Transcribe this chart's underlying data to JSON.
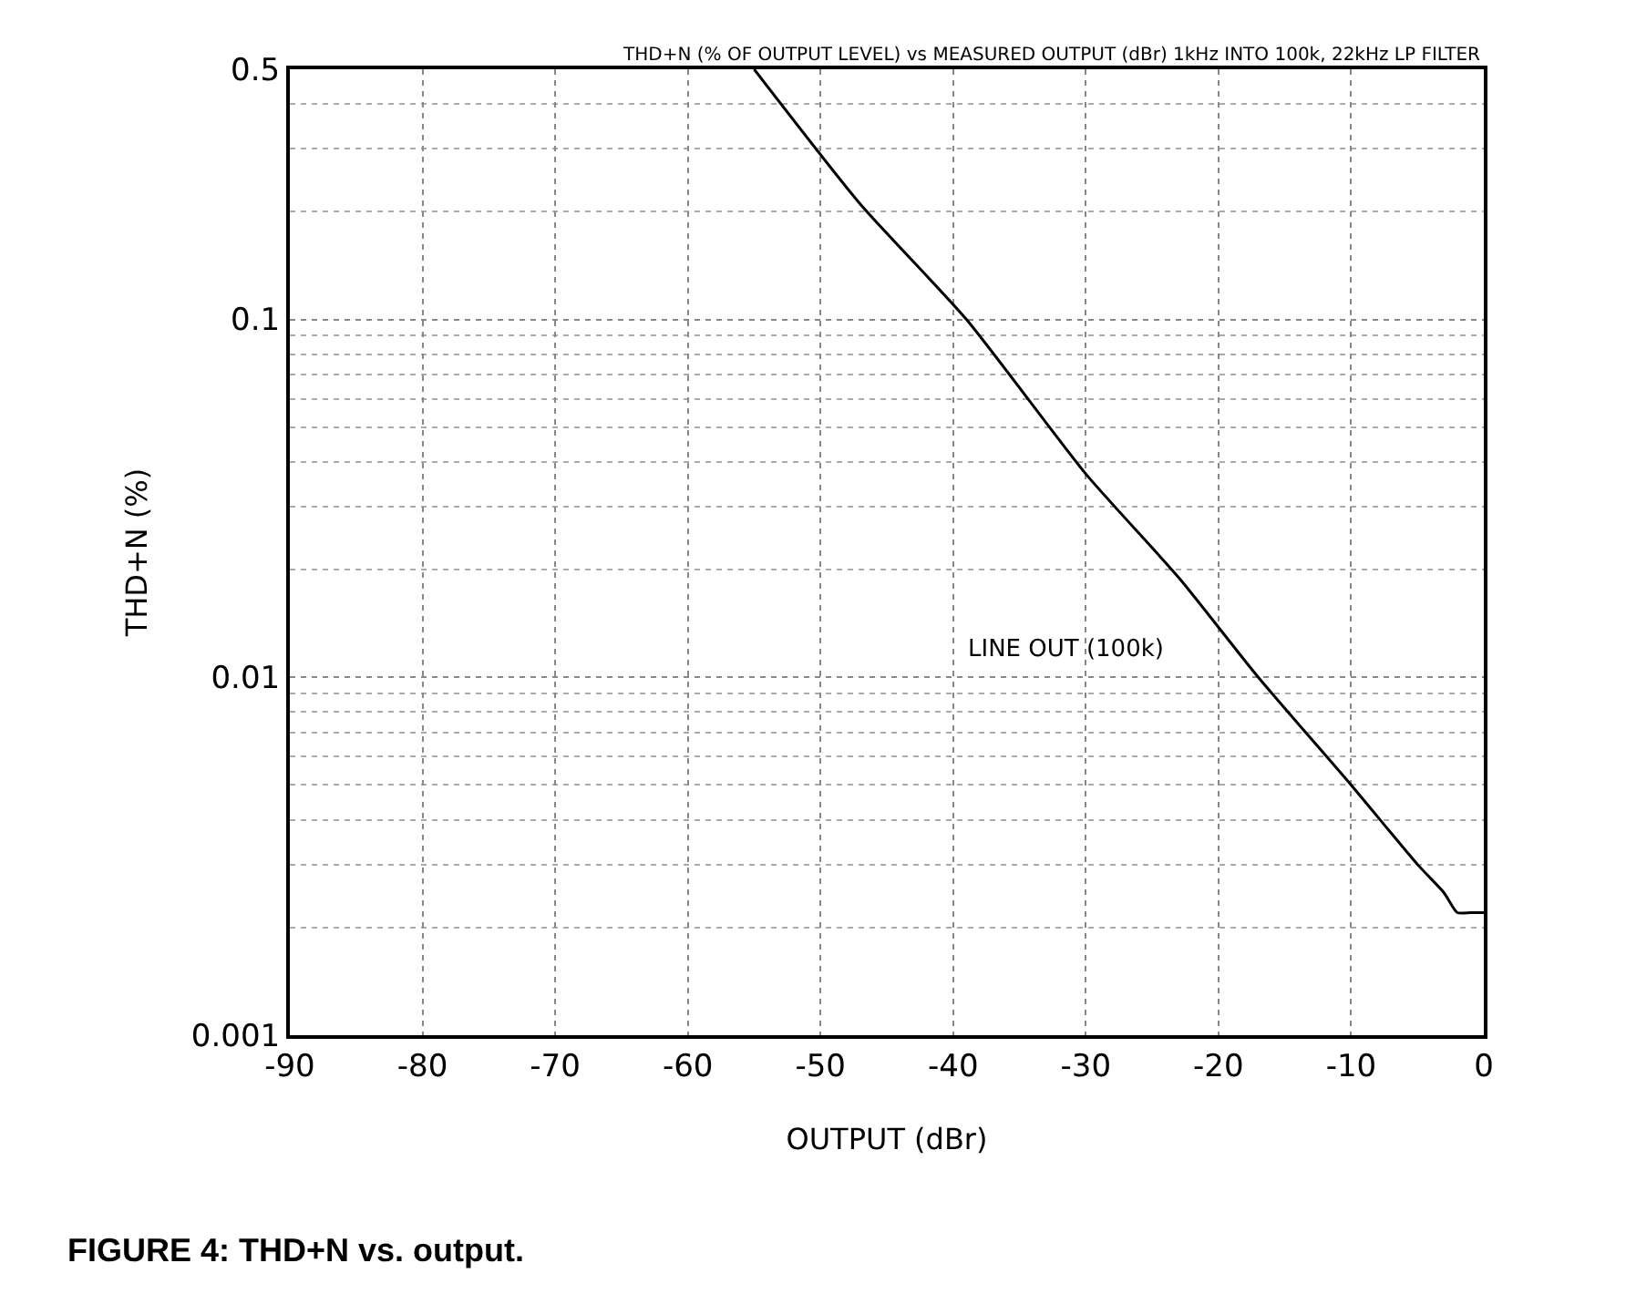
{
  "chart_data": {
    "type": "line",
    "title": "THD+N (% OF OUTPUT LEVEL) vs MEASURED OUTPUT (dBr) 1kHz INTO 100k, 22kHz LP FILTER",
    "xlabel": "OUTPUT (dBr)",
    "ylabel": "THD+N (%)",
    "x": [
      -55,
      -47,
      -39,
      -30,
      -23,
      -17,
      -10,
      -5,
      -3,
      -2,
      -1,
      0
    ],
    "series": [
      {
        "color": "#000000",
        "values": [
          0.5,
          0.21,
          0.1,
          0.037,
          0.019,
          0.01,
          0.005,
          0.003,
          0.0025,
          0.0022,
          0.0022,
          0.0022
        ]
      }
    ],
    "log": "y",
    "xlim": [
      -90,
      0
    ],
    "xticks": [
      -90,
      -80,
      -70,
      -60,
      -50,
      -40,
      -30,
      -20,
      -10,
      0
    ],
    "ylim": [
      0.001,
      0.5
    ],
    "yticks": [
      0.5,
      0.1,
      0.01,
      0.001
    ],
    "grid": true,
    "marker": "none",
    "line_style": "solid",
    "annotations": [
      "LINE OUT (100k)",
      "FIGURE 4: THD+N vs. output."
    ]
  }
}
